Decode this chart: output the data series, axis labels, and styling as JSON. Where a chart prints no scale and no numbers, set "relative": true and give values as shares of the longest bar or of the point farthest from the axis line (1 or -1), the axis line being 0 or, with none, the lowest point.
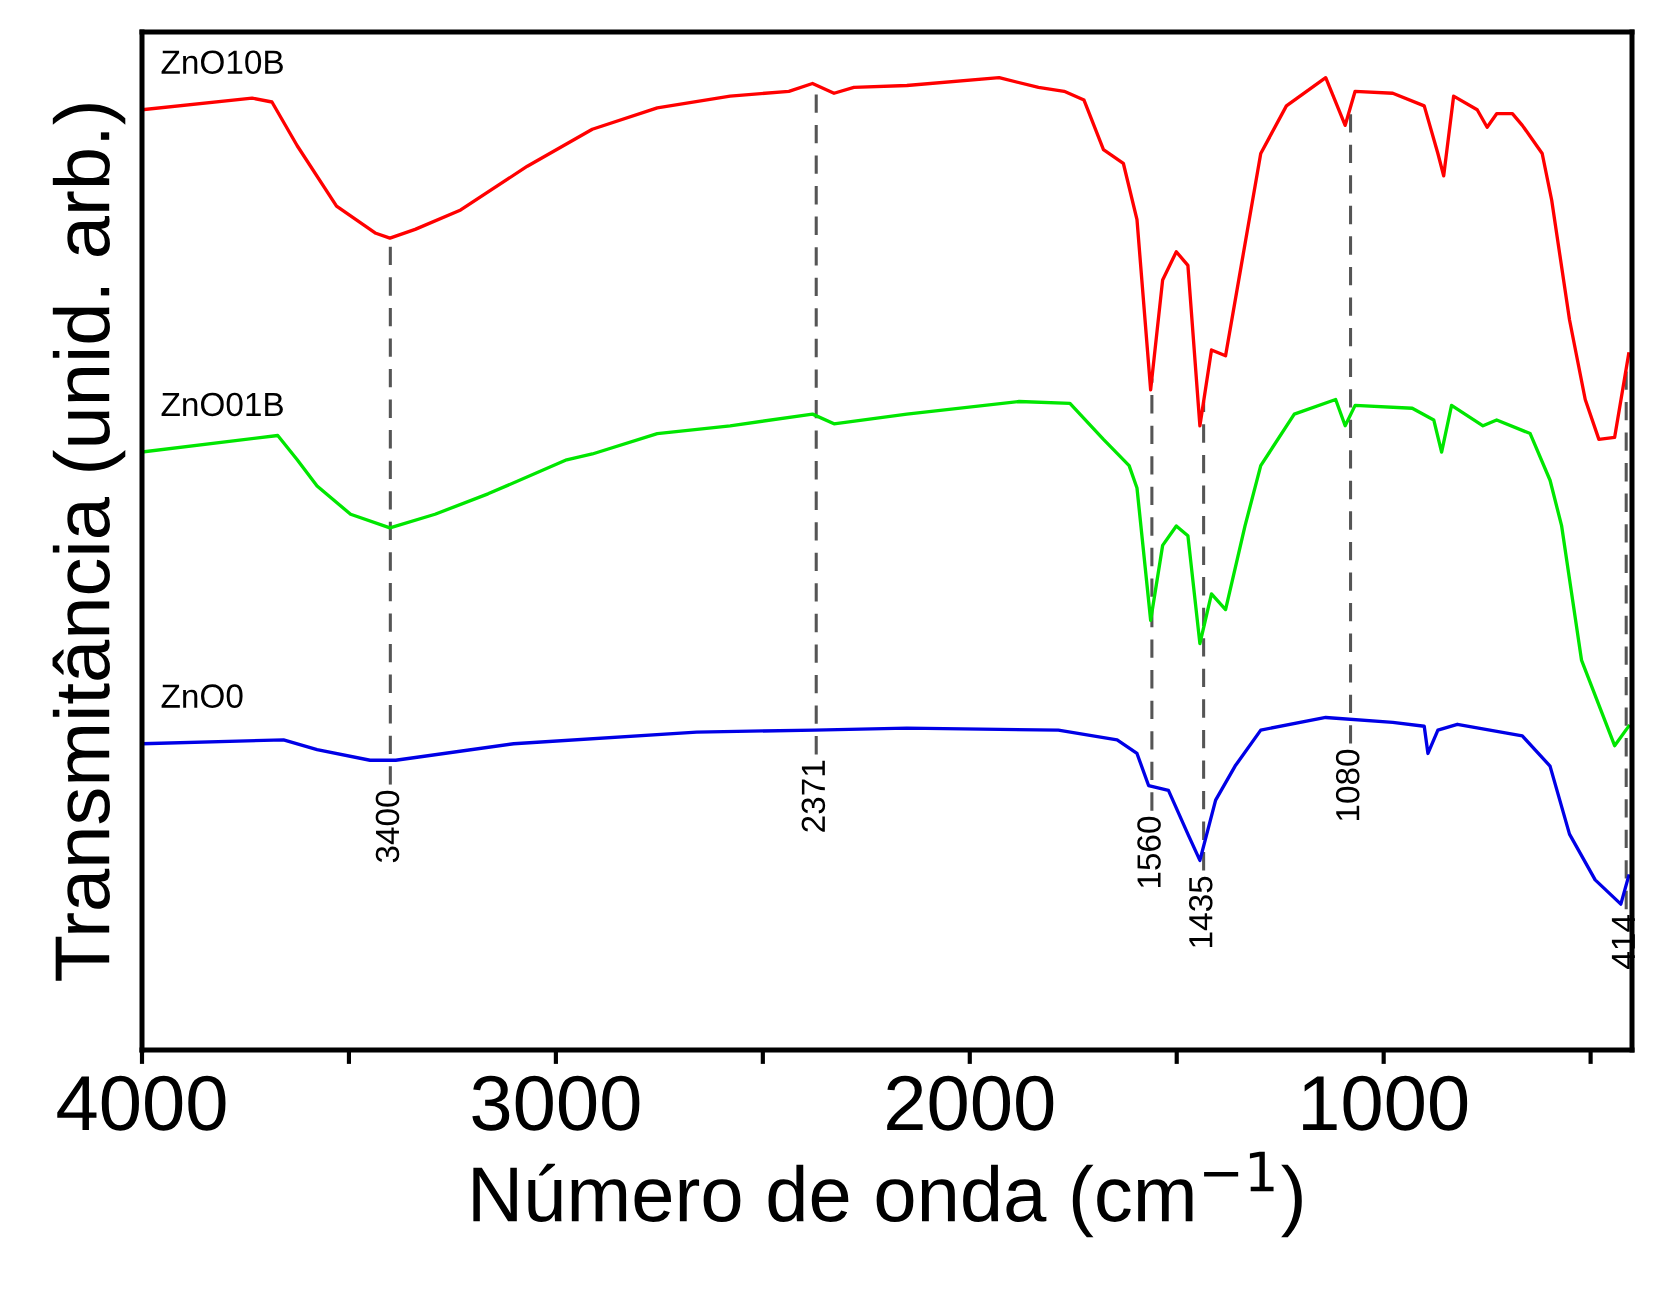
{
  "chart_data": {
    "type": "line",
    "relative": true,
    "xlabel": "Número de onda (cm$^{−1}$)",
    "ylabel": "Transmitância (unid. arb.)",
    "xlim": [
      4000,
      400
    ],
    "xticks": [
      4000,
      {
        "value": 3500,
        "label": null
      },
      3000,
      {
        "value": 2500,
        "label": null
      },
      2000,
      {
        "value": 1500,
        "label": null
      },
      1000,
      {
        "value": 500,
        "label": null
      }
    ],
    "grid": false,
    "legend": false,
    "marker": "none",
    "line_style": "solid",
    "tick_labels": "x",
    "series": [
      {
        "name": "ZnO10B",
        "color": "#ff0000",
        "x": [
          4000,
          3734,
          3686,
          3625,
          3530,
          3435,
          3401,
          3340,
          3230,
          3069,
          2912,
          2755,
          2579,
          2437,
          2380,
          2328,
          2280,
          2152,
          1929,
          1834,
          1772,
          1724,
          1677,
          1629,
          1596,
          1563,
          1534,
          1501,
          1473,
          1444,
          1416,
          1382,
          1344,
          1297,
          1235,
          1140,
          1093,
          1069,
          978,
          902,
          869,
          855,
          831,
          774,
          750,
          727,
          689,
          665,
          617,
          594,
          551,
          513,
          480,
          442,
          408
        ],
        "values": [
          0.967,
          0.979,
          0.975,
          0.93,
          0.868,
          0.84,
          0.835,
          0.844,
          0.864,
          0.909,
          0.947,
          0.969,
          0.981,
          0.986,
          0.994,
          0.984,
          0.99,
          0.992,
          1.0,
          0.99,
          0.986,
          0.977,
          0.926,
          0.912,
          0.854,
          0.679,
          0.792,
          0.821,
          0.807,
          0.642,
          0.72,
          0.714,
          0.807,
          0.922,
          0.971,
          1.0,
          0.951,
          0.986,
          0.984,
          0.971,
          0.922,
          0.899,
          0.981,
          0.967,
          0.949,
          0.963,
          0.963,
          0.951,
          0.922,
          0.874,
          0.751,
          0.669,
          0.628,
          0.63,
          0.716
        ]
      },
      {
        "name": "ZnO01B",
        "color": "#00e600",
        "x": [
          4000,
          3672,
          3625,
          3577,
          3496,
          3401,
          3292,
          3164,
          2974,
          2912,
          2755,
          2579,
          2380,
          2328,
          2152,
          1881,
          1758,
          1677,
          1615,
          1596,
          1563,
          1534,
          1501,
          1473,
          1444,
          1416,
          1382,
          1335,
          1297,
          1216,
          1116,
          1093,
          1069,
          931,
          879,
          860,
          836,
          760,
          727,
          646,
          598,
          570,
          522,
          442,
          408
        ],
        "values": [
          0.615,
          0.632,
          0.607,
          0.58,
          0.551,
          0.537,
          0.551,
          0.572,
          0.607,
          0.613,
          0.634,
          0.642,
          0.654,
          0.644,
          0.654,
          0.667,
          0.665,
          0.628,
          0.601,
          0.578,
          0.442,
          0.519,
          0.539,
          0.529,
          0.418,
          0.469,
          0.453,
          0.539,
          0.601,
          0.654,
          0.669,
          0.642,
          0.663,
          0.66,
          0.648,
          0.615,
          0.663,
          0.642,
          0.648,
          0.634,
          0.586,
          0.539,
          0.401,
          0.313,
          0.333
        ]
      },
      {
        "name": "ZnO0",
        "color": "#0000e6",
        "x": [
          4000,
          3658,
          3577,
          3449,
          3387,
          3102,
          2660,
          2375,
          2152,
          1786,
          1644,
          1596,
          1568,
          1520,
          1473,
          1444,
          1406,
          1359,
          1297,
          1140,
          978,
          902,
          893,
          869,
          822,
          665,
          598,
          551,
          489,
          427,
          408
        ],
        "values": [
          0.315,
          0.319,
          0.309,
          0.298,
          0.298,
          0.315,
          0.327,
          0.329,
          0.331,
          0.329,
          0.319,
          0.305,
          0.272,
          0.267,
          0.222,
          0.195,
          0.257,
          0.292,
          0.329,
          0.342,
          0.337,
          0.333,
          0.305,
          0.329,
          0.335,
          0.323,
          0.292,
          0.222,
          0.175,
          0.15,
          0.179
        ]
      }
    ],
    "ref_lines": [
      {
        "axis": "x",
        "value": 3400,
        "label": "3400",
        "color": "#555555",
        "line_style": "dashed"
      },
      {
        "axis": "x",
        "value": 2371,
        "label": "2371",
        "color": "#555555",
        "line_style": "dashed"
      },
      {
        "axis": "x",
        "value": 1560,
        "label": "1560",
        "color": "#555555",
        "line_style": "dashed"
      },
      {
        "axis": "x",
        "value": 1435,
        "label": "1435",
        "color": "#555555",
        "line_style": "dashed"
      },
      {
        "axis": "x",
        "value": 1080,
        "label": "1080",
        "color": "#555555",
        "line_style": "dashed"
      },
      {
        "axis": "x",
        "value": 414,
        "label": "414",
        "color": "#555555",
        "line_style": "dashed"
      }
    ]
  }
}
